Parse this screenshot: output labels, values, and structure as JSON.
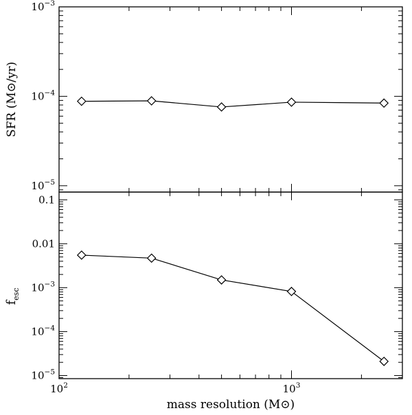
{
  "chart_data": [
    {
      "type": "line",
      "panel": "top",
      "ylabel": "SFR (M⊙/yr)",
      "yscale": "log",
      "ylim": [
        8.5e-06,
        0.001
      ],
      "xscale": "log",
      "xlim": [
        100,
        3000
      ],
      "yticks": [
        {
          "value": 1e-05,
          "base": "10",
          "exp": "−5"
        },
        {
          "value": 0.0001,
          "base": "10",
          "exp": "−4"
        },
        {
          "value": 0.001,
          "base": "10",
          "exp": "−3"
        }
      ],
      "series": [
        {
          "x": [
            125,
            250,
            500,
            1000,
            2500
          ],
          "y": [
            8.8e-05,
            8.9e-05,
            7.6e-05,
            8.6e-05,
            8.4e-05
          ],
          "marker": "diamond"
        }
      ],
      "grid": false
    },
    {
      "type": "line",
      "panel": "bottom",
      "ylabel_main": "f",
      "ylabel_sub": "esc",
      "yscale": "log",
      "ylim": [
        8.5e-06,
        0.15
      ],
      "xscale": "log",
      "xlim": [
        100,
        3000
      ],
      "yticks": [
        {
          "value": 1e-05,
          "base": "10",
          "exp": "−5"
        },
        {
          "value": 0.0001,
          "base": "10",
          "exp": "−4"
        },
        {
          "value": 0.001,
          "base": "10",
          "exp": "−3"
        },
        {
          "value": 0.01,
          "text": "0.01"
        },
        {
          "value": 0.1,
          "text": "0.1"
        }
      ],
      "xlabel": "mass resolution (M⊙)",
      "xticks": [
        {
          "value": 100,
          "base": "10",
          "exp": "2"
        },
        {
          "value": 1000,
          "base": "10",
          "exp": "3"
        }
      ],
      "series": [
        {
          "x": [
            125,
            250,
            500,
            1000,
            2500
          ],
          "y": [
            0.0055,
            0.0047,
            0.0015,
            0.00082,
            2.1e-05
          ],
          "marker": "diamond"
        }
      ],
      "grid": false
    }
  ]
}
